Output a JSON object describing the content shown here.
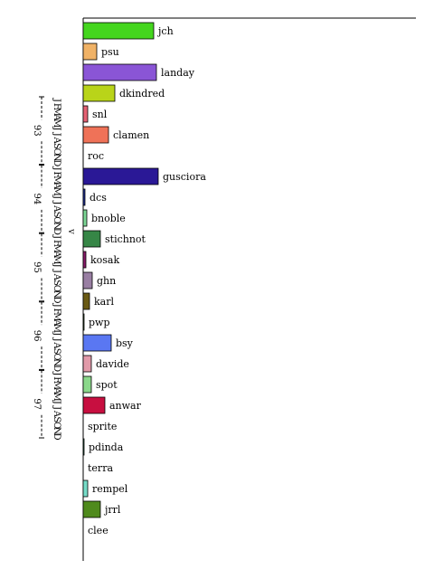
{
  "chart_data": {
    "type": "bar",
    "orientation": "horizontal",
    "categories": [
      "jch",
      "psu",
      "landay",
      "dkindred",
      "snl",
      "clamen",
      "roc",
      "gusciora",
      "dcs",
      "bnoble",
      "stichnot",
      "kosak",
      "ghn",
      "karl",
      "pwp",
      "bsy",
      "davide",
      "spot",
      "anwar",
      "sprite",
      "pdinda",
      "terra",
      "rempel",
      "jrrl",
      "clee"
    ],
    "values": [
      78,
      15,
      81,
      35,
      5,
      28,
      0,
      83,
      2,
      4,
      19,
      3,
      10,
      7,
      1,
      31,
      9,
      9,
      24,
      0,
      1,
      0,
      5,
      19,
      0
    ],
    "colors": [
      "#44d61e",
      "#f0b266",
      "#8a55d6",
      "#b9d419",
      "#e46173",
      "#ef7258",
      "#ffffff",
      "#2a1896",
      "#1e2f99",
      "#7dd796",
      "#368646",
      "#8a1a6a",
      "#997fa3",
      "#6a5a14",
      "#35672a",
      "#5a77f2",
      "#e19aa9",
      "#8bd88b",
      "#c70f40",
      "#ffffff",
      "#2a8a5a",
      "#ffffff",
      "#76dcc8",
      "#4f8a1c",
      "#ffffff"
    ],
    "xlim": [
      0,
      368
    ],
    "grid": false,
    "legend": "none",
    "timeline": {
      "months": "JFMAMJJASOND",
      "years": [
        "93",
        "94",
        "95",
        "96",
        "97"
      ],
      "marker": "v",
      "marker_month_index": 23
    }
  }
}
